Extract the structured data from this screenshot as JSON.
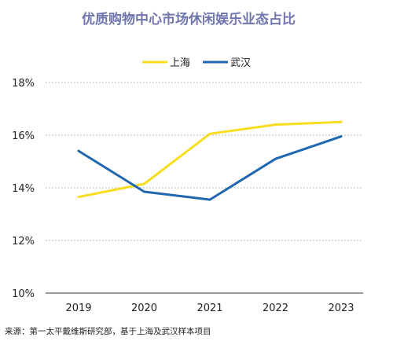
{
  "chart_data": {
    "type": "line",
    "title": "优质购物中心市场休闲娱乐业态占比",
    "xlabel": "",
    "ylabel": "",
    "categories": [
      "2019",
      "2020",
      "2021",
      "2022",
      "2023"
    ],
    "series": [
      {
        "name": "上海",
        "color": "#f7dd1e",
        "values": [
          13.65,
          14.15,
          16.05,
          16.4,
          16.5
        ]
      },
      {
        "name": "武汉",
        "color": "#1f67b0",
        "values": [
          15.4,
          13.85,
          13.55,
          15.1,
          15.95
        ]
      }
    ],
    "ylim": [
      10,
      18
    ],
    "yticks": [
      10,
      12,
      14,
      16,
      18
    ],
    "ytick_labels": [
      "10%",
      "12%",
      "14%",
      "16%",
      "18%"
    ],
    "grid": true,
    "legend_position": "top-center",
    "source": "来源：第一太平戴维斯研究部，基于上海及武汉样本项目"
  }
}
